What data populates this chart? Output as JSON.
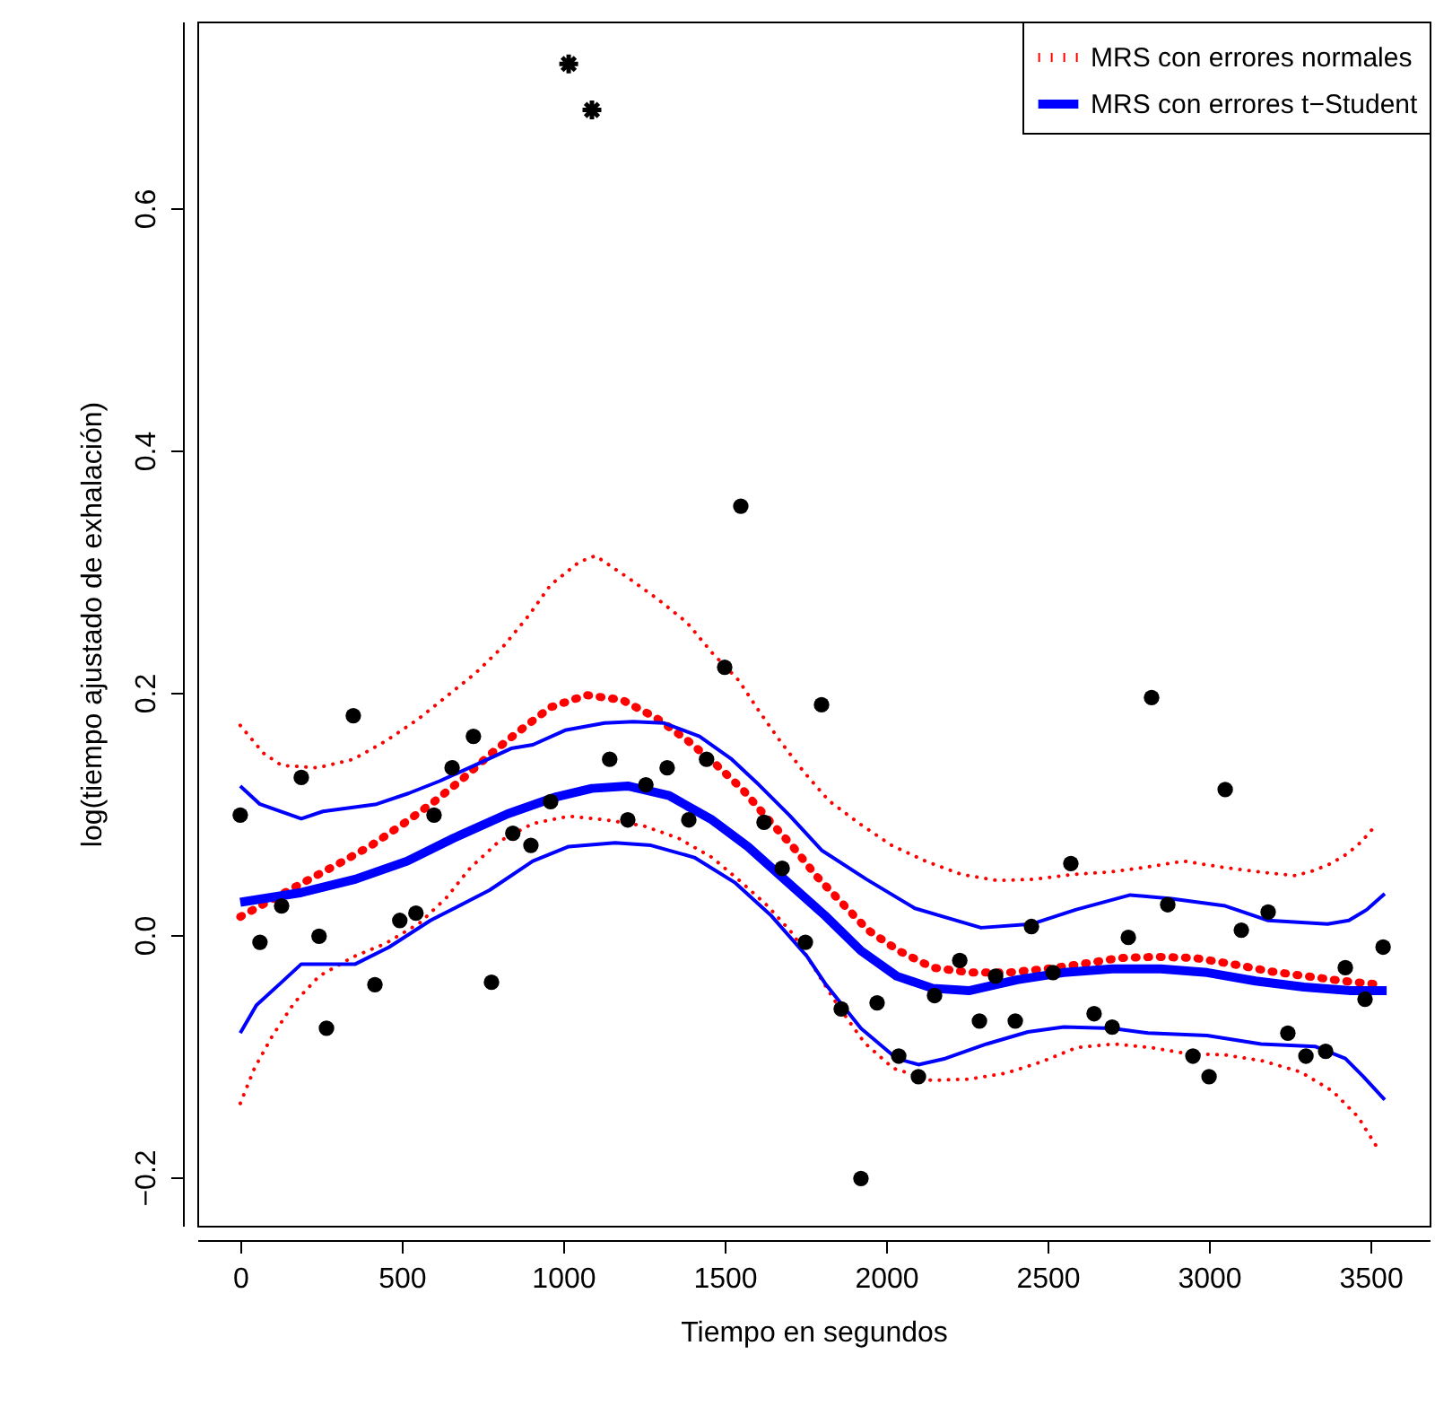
{
  "chart_data": {
    "type": "line",
    "xlabel": "Tiempo en segundos",
    "ylabel": "log(tiempo ajustado de exhalación)",
    "xlim": [
      -133,
      3683
    ],
    "ylim": [
      -0.24,
      0.754
    ],
    "xticks": [
      0,
      500,
      1000,
      1500,
      2000,
      2500,
      3000,
      3500
    ],
    "yticks": [
      {
        "value": -0.2,
        "label": "−0.2"
      },
      {
        "value": 0,
        "label": "0.0"
      },
      0.2,
      0.4,
      0.6
    ],
    "legend": "top right",
    "series": [
      {
        "type": "scatter",
        "color": "#000000",
        "marker": "circle",
        "x": [
          0,
          61,
          128,
          189,
          244,
          267,
          350,
          417,
          494,
          544,
          600,
          656,
          722,
          778,
          844,
          900,
          961,
          1144,
          1200,
          1256,
          1322,
          1389,
          1444,
          1500,
          1550,
          1622,
          1678,
          1750,
          1800,
          1861,
          1922,
          1972,
          2039,
          2100,
          2150,
          2228,
          2289,
          2339,
          2400,
          2450,
          2517,
          2572,
          2644,
          2700,
          2750,
          2822,
          2872,
          2950,
          3000,
          3050,
          3100,
          3183,
          3244,
          3300,
          3361,
          3422,
          3483,
          3539
        ],
        "values": [
          0.099,
          -0.006,
          0.024,
          0.13,
          -0.001,
          -0.077,
          0.181,
          -0.041,
          0.012,
          0.018,
          0.099,
          0.138,
          0.164,
          -0.039,
          0.084,
          0.074,
          0.11,
          0.145,
          0.095,
          0.124,
          0.138,
          0.095,
          0.145,
          0.221,
          0.354,
          0.093,
          0.055,
          -0.006,
          0.19,
          -0.061,
          -0.201,
          -0.056,
          -0.1,
          -0.117,
          -0.05,
          -0.021,
          -0.071,
          -0.034,
          -0.071,
          0.007,
          -0.031,
          0.059,
          -0.065,
          -0.076,
          -0.002,
          0.196,
          0.025,
          -0.1,
          -0.117,
          0.12,
          0.004,
          0.019,
          -0.081,
          -0.1,
          -0.096,
          -0.027,
          -0.053,
          -0.01
        ]
      },
      {
        "type": "scatter",
        "color": "#000000",
        "marker": "cross",
        "x": [
          1017,
          1089
        ],
        "values": [
          0.719,
          0.681
        ]
      },
      {
        "name": "MRS con errores normales",
        "color": "#ff0000",
        "line_style": "dotted",
        "x": [
          0,
          200,
          306,
          406,
          506,
          600,
          689,
          778,
          867,
          961,
          1072,
          1183,
          1289,
          1383,
          1472,
          1556,
          1633,
          1711,
          1783,
          1861,
          1944,
          2039,
          2144,
          2261,
          2378,
          2494,
          2606,
          2722,
          2839,
          2956,
          3072,
          3189,
          3300,
          3417,
          3533
        ],
        "values": [
          0.015,
          0.044,
          0.059,
          0.074,
          0.092,
          0.11,
          0.129,
          0.15,
          0.169,
          0.188,
          0.198,
          0.194,
          0.179,
          0.161,
          0.141,
          0.12,
          0.096,
          0.073,
          0.049,
          0.027,
          0.004,
          -0.013,
          -0.027,
          -0.031,
          -0.031,
          -0.028,
          -0.024,
          -0.019,
          -0.018,
          -0.019,
          -0.024,
          -0.03,
          -0.034,
          -0.038,
          -0.041
        ]
      },
      {
        "color": "#ff0000",
        "line_style": "dotted",
        "x": [
          0,
          72,
          128,
          239,
          350,
          450,
          550,
          639,
          728,
          817,
          894,
          961,
          1050,
          1100,
          1200,
          1294,
          1383,
          1461,
          1544,
          1606,
          1672,
          1744,
          1822,
          1917,
          2017,
          2122,
          2233,
          2344,
          2461,
          2578,
          2694,
          2806,
          2922,
          3039,
          3156,
          3267,
          3322,
          3378,
          3428,
          3472,
          3511
        ],
        "values": [
          0.173,
          0.15,
          0.14,
          0.138,
          0.145,
          0.16,
          0.178,
          0.197,
          0.216,
          0.239,
          0.264,
          0.289,
          0.308,
          0.313,
          0.295,
          0.277,
          0.258,
          0.233,
          0.21,
          0.185,
          0.16,
          0.135,
          0.111,
          0.092,
          0.074,
          0.061,
          0.05,
          0.045,
          0.046,
          0.05,
          0.052,
          0.056,
          0.061,
          0.056,
          0.052,
          0.049,
          0.053,
          0.059,
          0.067,
          0.077,
          0.089
        ]
      },
      {
        "color": "#ff0000",
        "line_style": "dotted",
        "x": [
          0,
          44,
          100,
          167,
          244,
          350,
          450,
          556,
          639,
          711,
          800,
          906,
          1017,
          1133,
          1250,
          1356,
          1461,
          1550,
          1633,
          1711,
          1772,
          1850,
          1933,
          2022,
          2139,
          2256,
          2372,
          2478,
          2589,
          2706,
          2822,
          2933,
          3050,
          3167,
          3283,
          3383,
          3461,
          3522
        ],
        "values": [
          -0.139,
          -0.11,
          -0.083,
          -0.056,
          -0.034,
          -0.018,
          -0.007,
          0.01,
          0.031,
          0.055,
          0.077,
          0.092,
          0.098,
          0.095,
          0.09,
          0.08,
          0.064,
          0.044,
          0.024,
          0.001,
          -0.025,
          -0.058,
          -0.089,
          -0.11,
          -0.12,
          -0.119,
          -0.114,
          -0.105,
          -0.093,
          -0.09,
          -0.093,
          -0.098,
          -0.099,
          -0.104,
          -0.113,
          -0.129,
          -0.15,
          -0.176
        ]
      },
      {
        "name": "MRS con errores t−Student",
        "color": "#0000ff",
        "line_style": "solid",
        "x": [
          0,
          189,
          356,
          517,
          661,
          828,
          978,
          1089,
          1200,
          1328,
          1461,
          1572,
          1672,
          1811,
          1922,
          2033,
          2144,
          2256,
          2406,
          2550,
          2700,
          2850,
          2994,
          3144,
          3294,
          3439,
          3550
        ],
        "values": [
          0.027,
          0.035,
          0.046,
          0.061,
          0.08,
          0.1,
          0.114,
          0.121,
          0.123,
          0.115,
          0.095,
          0.073,
          0.049,
          0.016,
          -0.013,
          -0.034,
          -0.044,
          -0.046,
          -0.037,
          -0.031,
          -0.028,
          -0.028,
          -0.031,
          -0.038,
          -0.043,
          -0.046,
          -0.046
        ]
      },
      {
        "color": "#0000ff",
        "line_style": "solid",
        "x": [
          0,
          61,
          189,
          256,
          422,
          522,
          617,
          717,
          839,
          906,
          1006,
          1128,
          1217,
          1311,
          1422,
          1522,
          1606,
          1700,
          1800,
          1939,
          2089,
          2294,
          2450,
          2589,
          2756,
          2883,
          3050,
          3183,
          3367,
          3433,
          3489,
          3544
        ],
        "values": [
          0.123,
          0.108,
          0.096,
          0.102,
          0.108,
          0.117,
          0.127,
          0.139,
          0.154,
          0.157,
          0.169,
          0.175,
          0.176,
          0.175,
          0.164,
          0.145,
          0.124,
          0.099,
          0.07,
          0.046,
          0.022,
          0.006,
          0.009,
          0.021,
          0.033,
          0.03,
          0.024,
          0.012,
          0.009,
          0.012,
          0.021,
          0.034
        ]
      },
      {
        "color": "#0000ff",
        "line_style": "solid",
        "x": [
          0,
          50,
          128,
          189,
          356,
          461,
          589,
          772,
          906,
          1017,
          1161,
          1272,
          1406,
          1533,
          1644,
          1756,
          1811,
          1922,
          2033,
          2100,
          2183,
          2311,
          2439,
          2550,
          2700,
          2811,
          2994,
          3161,
          3328,
          3422,
          3478,
          3544
        ],
        "values": [
          -0.081,
          -0.058,
          -0.039,
          -0.024,
          -0.024,
          -0.01,
          0.012,
          0.037,
          0.061,
          0.073,
          0.076,
          0.074,
          0.064,
          0.043,
          0.016,
          -0.018,
          -0.04,
          -0.077,
          -0.102,
          -0.107,
          -0.102,
          -0.09,
          -0.08,
          -0.076,
          -0.077,
          -0.081,
          -0.083,
          -0.09,
          -0.092,
          -0.102,
          -0.117,
          -0.136
        ]
      }
    ]
  }
}
